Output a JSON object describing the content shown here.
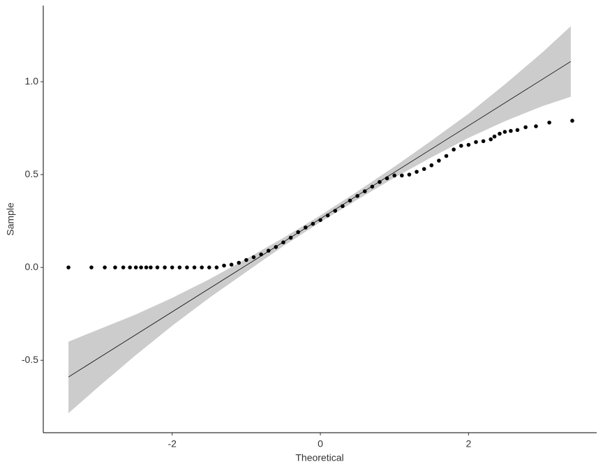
{
  "chart_data": {
    "type": "scatter",
    "x_label": "Theoretical",
    "y_label": "Sample",
    "xlim": [
      -3.74,
      3.73
    ],
    "ylim": [
      -0.89,
      1.41
    ],
    "xticks": [
      -2,
      0,
      2
    ],
    "yticks": [
      -0.5,
      {
        "value": 0,
        "label": "0.0"
      },
      0.5,
      {
        "value": 1,
        "label": "1.0"
      }
    ],
    "color": "#000000",
    "x": [
      -3.4,
      -3.09,
      -2.91,
      -2.77,
      -2.66,
      -2.57,
      -2.49,
      -2.42,
      -2.35,
      -2.29,
      -2.2,
      -2.1,
      -2.0,
      -1.9,
      -1.8,
      -1.7,
      -1.6,
      -1.5,
      -1.4,
      -1.3,
      -1.2,
      -1.1,
      -1.0,
      -0.9,
      -0.8,
      -0.7,
      -0.6,
      -0.5,
      -0.4,
      -0.3,
      -0.2,
      -0.1,
      0,
      0.1,
      0.2,
      0.3,
      0.4,
      0.5,
      0.6,
      0.7,
      0.8,
      0.9,
      1.0,
      1.1,
      1.2,
      1.3,
      1.4,
      1.5,
      1.6,
      1.7,
      1.8,
      1.9,
      2.0,
      2.1,
      2.2,
      2.3,
      2.35,
      2.42,
      2.49,
      2.57,
      2.66,
      2.77,
      2.91,
      3.09,
      3.4
    ],
    "values": [
      0,
      0,
      0,
      0,
      0,
      0,
      0,
      0,
      0,
      0,
      0,
      0,
      0,
      0,
      0,
      0,
      0,
      0,
      0,
      0.01,
      0.015,
      0.025,
      0.04,
      0.055,
      0.07,
      0.09,
      0.11,
      0.135,
      0.16,
      0.19,
      0.215,
      0.235,
      0.255,
      0.28,
      0.305,
      0.33,
      0.36,
      0.385,
      0.41,
      0.435,
      0.46,
      0.48,
      0.495,
      0.495,
      0.5,
      0.515,
      0.53,
      0.55,
      0.575,
      0.6,
      0.635,
      0.655,
      0.66,
      0.675,
      0.68,
      0.69,
      0.705,
      0.72,
      0.73,
      0.735,
      0.74,
      0.755,
      0.76,
      0.78,
      0.79
    ],
    "line": {
      "x": [
        -3.4,
        3.38
      ],
      "values": [
        -0.59,
        1.109
      ],
      "color": "#000000"
    },
    "band": {
      "x": [
        -3.4,
        -3.0,
        -2.5,
        -2.0,
        -1.5,
        -1.0,
        -0.5,
        0,
        0.5,
        1.0,
        1.5,
        2.0,
        2.5,
        3.0,
        3.38
      ],
      "lower": [
        -0.785,
        -0.645,
        -0.475,
        -0.314,
        -0.164,
        -0.024,
        0.115,
        0.244,
        0.365,
        0.483,
        0.593,
        0.698,
        0.789,
        0.869,
        0.919
      ],
      "upper": [
        -0.4,
        -0.335,
        -0.255,
        -0.164,
        -0.064,
        0.046,
        0.159,
        0.28,
        0.409,
        0.543,
        0.683,
        0.828,
        0.989,
        1.159,
        1.299
      ],
      "color": "#cccccc"
    }
  }
}
